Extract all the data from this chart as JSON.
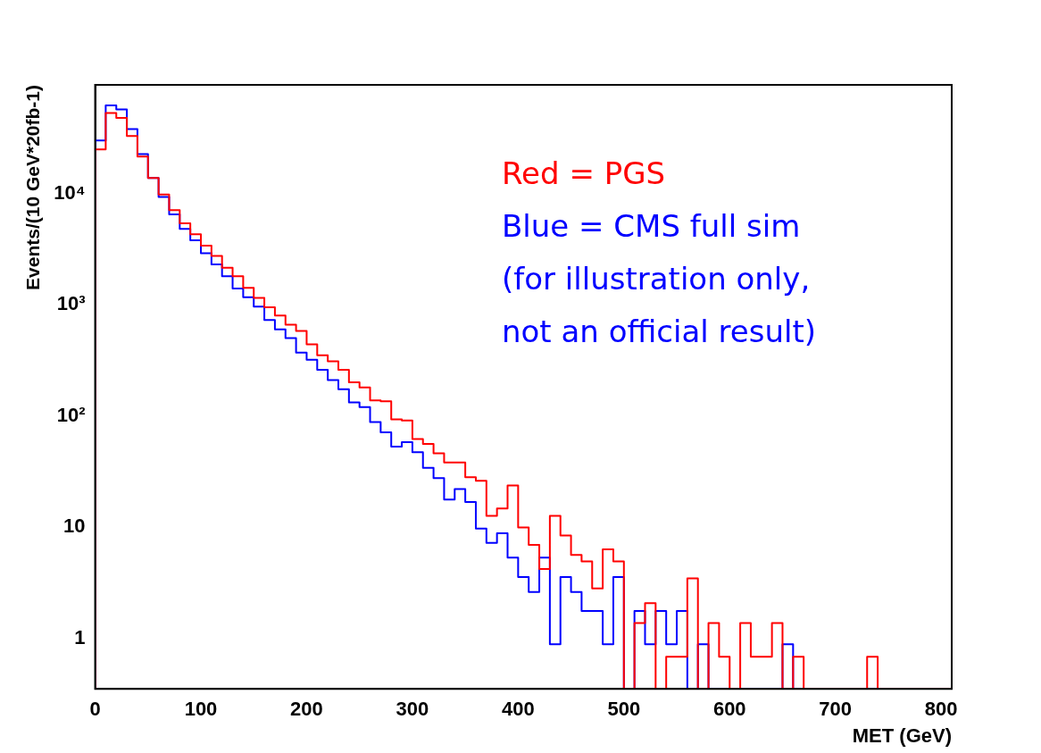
{
  "chart_data": {
    "type": "histogram",
    "xlabel": "MET (GeV)",
    "ylabel": "Events/(10 GeV*20fb-1)",
    "bins": [
      0,
      10,
      20,
      30,
      40,
      50,
      60,
      70,
      80,
      90,
      100,
      110,
      120,
      130,
      140,
      150,
      160,
      170,
      180,
      190,
      200,
      210,
      220,
      230,
      240,
      250,
      260,
      270,
      280,
      290,
      300,
      310,
      320,
      330,
      340,
      350,
      360,
      370,
      380,
      390,
      400,
      410,
      420,
      430,
      440,
      450,
      460,
      470,
      480,
      490,
      500,
      510,
      520,
      530,
      540,
      550,
      560,
      570,
      580,
      590,
      600,
      610,
      620,
      630,
      640,
      650,
      660,
      670,
      680,
      690,
      700,
      710,
      720,
      730,
      740,
      750,
      760,
      770,
      780,
      790,
      800,
      810
    ],
    "series": [
      {
        "color": "#ff0000",
        "values": [
          25000,
          53000,
          48000,
          33000,
          21500,
          13800,
          9800,
          7100,
          5400,
          4300,
          3400,
          2750,
          2150,
          1800,
          1420,
          1150,
          950,
          800,
          660,
          580,
          440,
          350,
          310,
          260,
          200,
          180,
          138,
          135,
          93,
          91,
          62,
          56,
          46,
          38,
          38,
          28,
          26,
          12.6,
          14.7,
          23.7,
          9.9,
          6.9,
          4.2,
          12.6,
          8.4,
          5.6,
          4.9,
          2.8,
          6.3,
          4.9,
          null,
          1.37,
          2.07,
          null,
          0.68,
          0.68,
          3.46,
          null,
          1.37,
          0.68,
          null,
          1.37,
          0.68,
          0.68,
          1.37,
          null,
          0.68,
          null,
          null,
          null,
          null,
          null,
          null,
          0.68,
          null,
          null,
          null,
          null,
          null,
          null,
          null
        ]
      },
      {
        "color": "#0000ff",
        "values": [
          30000,
          62000,
          57000,
          38000,
          22600,
          13800,
          9300,
          6500,
          4800,
          3800,
          2900,
          2300,
          1800,
          1400,
          1170,
          960,
          730,
          600,
          500,
          370,
          320,
          260,
          210,
          174,
          132,
          120,
          88,
          71,
          53,
          58,
          47,
          34,
          27.5,
          17.7,
          22,
          16.8,
          9.7,
          7.2,
          8.8,
          5.3,
          3.55,
          2.6,
          5.3,
          0.88,
          3.55,
          2.6,
          1.76,
          1.76,
          0.88,
          3.55,
          null,
          1.76,
          0.88,
          1.76,
          0.88,
          1.76,
          null,
          0.88,
          null,
          null,
          null,
          null,
          null,
          null,
          null,
          0.88,
          null,
          null,
          null,
          null,
          null,
          null,
          null,
          null,
          null,
          null,
          null,
          null,
          null,
          null,
          null
        ]
      }
    ],
    "xlim": [
      0,
      810
    ],
    "xticks": [
      0,
      100,
      200,
      300,
      400,
      500,
      600,
      700,
      800
    ],
    "ylim": [
      0.35,
      95000
    ],
    "log": true,
    "yticks": [
      {
        "value": 1,
        "label": "1"
      },
      {
        "value": 10,
        "label": "10"
      },
      {
        "value": 100,
        "label": "10²"
      },
      {
        "value": 1000,
        "label": "10³"
      },
      {
        "value": 10000,
        "label": "10⁴"
      }
    ],
    "annotations": [
      "Red = PGS",
      "Blue = CMS full sim",
      "(for illustration only,",
      "not an official result)"
    ],
    "legend": false,
    "grid": false
  }
}
